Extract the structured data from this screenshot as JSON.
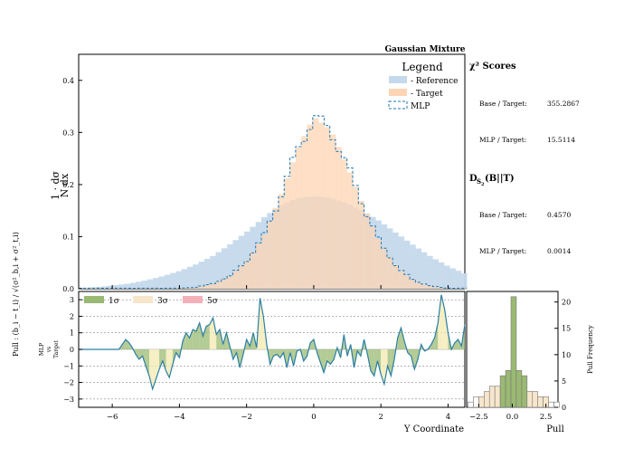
{
  "chart_data": {
    "type": "histogram",
    "title": "Gaussian Mixture",
    "main_panel": {
      "ylabel": "1/N · dσ/dx",
      "ylim": [
        0,
        0.45
      ],
      "yticks": [
        "0.0",
        "0.1",
        "0.2",
        "0.3",
        "0.4"
      ],
      "xlim": [
        -7.0,
        4.5
      ],
      "legend": {
        "title": "Legend",
        "position": "top-right",
        "entries": [
          {
            "label": "- Reference",
            "color": "#c5d9ec"
          },
          {
            "label": "- Target",
            "color": "#fdd5b4"
          },
          {
            "label": "MLP",
            "color": "#1f77b4",
            "style": "dashed"
          }
        ]
      },
      "reference_bins": {
        "bin_width": 0.17,
        "note": "broad Gaussian, peak ~0.18 near x=0",
        "x": [
          -7.0,
          -6.5,
          -6.0,
          -5.5,
          -5.0,
          -4.5,
          -4.0,
          -3.5,
          -3.0,
          -2.5,
          -2.0,
          -1.5,
          -1.0,
          -0.5,
          0.0,
          0.5,
          1.0,
          1.5,
          2.0,
          2.5,
          3.0,
          3.5,
          4.0,
          4.5
        ],
        "y": [
          0.001,
          0.003,
          0.006,
          0.01,
          0.016,
          0.024,
          0.034,
          0.047,
          0.063,
          0.085,
          0.109,
          0.136,
          0.16,
          0.174,
          0.178,
          0.174,
          0.164,
          0.148,
          0.128,
          0.105,
          0.082,
          0.061,
          0.043,
          0.029
        ]
      },
      "target_bins": {
        "note": "narrow Gaussian, peak ~0.33 near x=0",
        "x": [
          -4.0,
          -3.5,
          -3.0,
          -2.5,
          -2.0,
          -1.5,
          -1.0,
          -0.5,
          0.0,
          0.5,
          1.0,
          1.5,
          2.0,
          2.5,
          3.0,
          3.5,
          4.0
        ],
        "y": [
          0.001,
          0.003,
          0.01,
          0.024,
          0.053,
          0.1,
          0.175,
          0.265,
          0.33,
          0.305,
          0.235,
          0.155,
          0.085,
          0.04,
          0.015,
          0.005,
          0.001
        ]
      }
    },
    "ratio_panel": {
      "ylabel_lines": [
        "MLP",
        "vs",
        "Target"
      ],
      "outer_ylabel": "Pull : (b_i − t_i) / √(σ²_b,i + σ²_t,i)",
      "xlabel": "Y Coordinate",
      "ylim": [
        -3.5,
        3.5
      ],
      "yticks": [
        "−3",
        "−2",
        "−1",
        "0",
        "1",
        "2",
        "3"
      ],
      "xticks": [
        "−6",
        "−4",
        "−2",
        "0",
        "2",
        "4"
      ],
      "x_tick_values": [
        -6,
        -4,
        -2,
        0,
        2,
        4
      ],
      "bands": [
        {
          "label": "1σ",
          "color": "#9ab972"
        },
        {
          "label": "3σ",
          "color": "#f8e6cc"
        },
        {
          "label": "5σ",
          "color": "#f4b0b8"
        }
      ],
      "pull_x": [
        -7.0,
        -5.8,
        -5.6,
        -5.5,
        -5.4,
        -5.3,
        -5.2,
        -5.1,
        -5.0,
        -4.9,
        -4.8,
        -4.7,
        -4.6,
        -4.5,
        -4.4,
        -4.3,
        -4.2,
        -4.1,
        -4.0,
        -3.9,
        -3.8,
        -3.7,
        -3.6,
        -3.5,
        -3.4,
        -3.3,
        -3.2,
        -3.1,
        -3.0,
        -2.9,
        -2.8,
        -2.7,
        -2.6,
        -2.5,
        -2.4,
        -2.3,
        -2.2,
        -2.1,
        -2.0,
        -1.9,
        -1.8,
        -1.7,
        -1.6,
        -1.5,
        -1.4,
        -1.3,
        -1.2,
        -1.1,
        -1.0,
        -0.9,
        -0.8,
        -0.7,
        -0.6,
        -0.5,
        -0.4,
        -0.3,
        -0.2,
        -0.1,
        0.0,
        0.1,
        0.2,
        0.3,
        0.4,
        0.5,
        0.6,
        0.7,
        0.8,
        0.9,
        1.0,
        1.1,
        1.2,
        1.3,
        1.4,
        1.5,
        1.6,
        1.7,
        1.8,
        1.9,
        2.0,
        2.1,
        2.2,
        2.3,
        2.4,
        2.5,
        2.6,
        2.7,
        2.8,
        2.9,
        3.0,
        3.1,
        3.2,
        3.3,
        3.4,
        3.5,
        3.6,
        3.7,
        3.8,
        3.9,
        4.0,
        4.1,
        4.2,
        4.3,
        4.4,
        4.5
      ],
      "pull_y": [
        0.0,
        0.0,
        0.6,
        0.4,
        0.1,
        -0.3,
        -0.6,
        -0.4,
        -1.0,
        -1.6,
        -2.4,
        -1.8,
        -1.2,
        -0.7,
        -1.3,
        -1.7,
        -0.9,
        -0.2,
        -0.5,
        0.5,
        1.0,
        0.7,
        1.2,
        1.1,
        1.6,
        0.8,
        1.4,
        1.5,
        1.9,
        0.9,
        1.2,
        0.3,
        1.0,
        0.2,
        -0.6,
        -0.2,
        -1.1,
        -0.3,
        0.6,
        0.2,
        1.0,
        0.1,
        3.1,
        2.0,
        0.3,
        -0.9,
        -0.4,
        -0.3,
        -0.5,
        -0.2,
        -1.1,
        -0.2,
        -1.0,
        -0.1,
        0.0,
        -0.7,
        -0.4,
        0.4,
        0.6,
        -0.2,
        -0.8,
        -1.4,
        -0.7,
        -0.9,
        -0.6,
        0.1,
        -0.5,
        0.9,
        -0.4,
        0.3,
        -1.1,
        -0.1,
        -0.4,
        0.6,
        -0.3,
        -1.3,
        -1.6,
        -0.7,
        -1.5,
        -2.1,
        -1.0,
        -1.6,
        -0.6,
        0.7,
        1.3,
        0.5,
        -0.2,
        -0.4,
        -1.2,
        -0.6,
        0.3,
        -0.1,
        0.0,
        0.3,
        0.7,
        1.6,
        3.3,
        2.4,
        1.0,
        0.0,
        0.4,
        0.6,
        0.2,
        1.5
      ]
    },
    "pull_histogram": {
      "xlabel": "Pull",
      "ylabel": "Pull Frequency",
      "xticks": [
        "−2.5",
        "0.0",
        "2.5"
      ],
      "yticks": [
        "0",
        "5",
        "10",
        "15",
        "20"
      ],
      "ylim": [
        0,
        22
      ],
      "xlim": [
        -3.4,
        3.4
      ],
      "bin_centers": [
        -3.1,
        -2.7,
        -2.3,
        -1.9,
        -1.5,
        -1.1,
        -0.7,
        -0.3,
        0.1,
        0.5,
        0.9,
        1.3,
        1.7,
        2.1,
        2.5,
        2.9,
        3.3
      ],
      "counts": [
        1,
        2,
        2,
        3,
        4,
        4,
        6,
        7,
        21,
        7,
        6,
        3,
        3,
        2,
        2,
        1,
        1
      ]
    },
    "stats": {
      "chi2_title": "χ² Scores",
      "chi2_base_label": "Base / Target:",
      "chi2_base_value": "355.2867",
      "chi2_mlp_label": "MLP / Target:",
      "chi2_mlp_value": "15.5114",
      "ds_title": "D",
      "ds_subscript": "S",
      "ds_subsubscript": "2",
      "ds_suffix": "(B||T)",
      "ds_base_label": "Base / Target:",
      "ds_base_value": "0.4570",
      "ds_mlp_label": "MLP / Target:",
      "ds_mlp_value": "0.0014"
    }
  }
}
